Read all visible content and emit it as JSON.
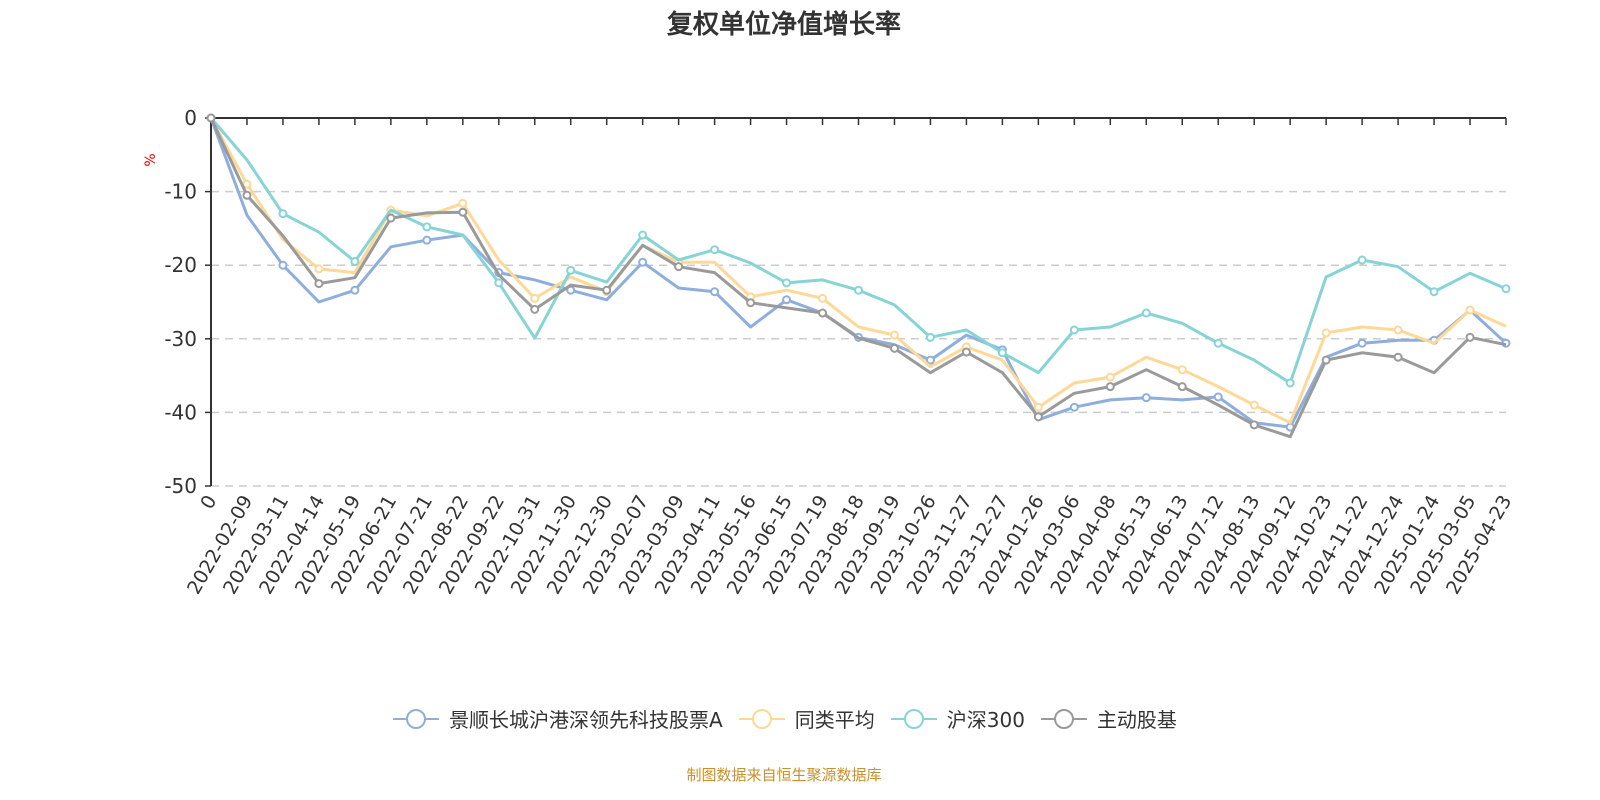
{
  "chart_data": {
    "type": "line",
    "title": "复权单位净值增长率",
    "ylabel": "%",
    "xlabel": "",
    "ylim": [
      -50,
      0
    ],
    "yticks": [
      0,
      -10,
      -20,
      -30,
      -40,
      -50
    ],
    "grid": true,
    "legend_position": "bottom",
    "categories": [
      "0",
      "2022-02-09",
      "2022-03-11",
      "2022-04-14",
      "2022-05-19",
      "2022-06-21",
      "2022-07-21",
      "2022-08-22",
      "2022-09-22",
      "2022-10-31",
      "2022-11-30",
      "2022-12-30",
      "2023-02-07",
      "2023-03-09",
      "2023-04-11",
      "2023-05-16",
      "2023-06-15",
      "2023-07-19",
      "2023-08-18",
      "2023-09-19",
      "2023-10-26",
      "2023-11-27",
      "2023-12-27",
      "2024-01-26",
      "2024-03-06",
      "2024-04-08",
      "2024-05-13",
      "2024-06-13",
      "2024-07-12",
      "2024-08-13",
      "2024-09-12",
      "2024-10-23",
      "2024-11-22",
      "2024-12-24",
      "2025-01-24",
      "2025-03-05",
      "2025-04-23"
    ],
    "series": [
      {
        "name": "景顺长城沪港深领先科技股票A",
        "color": "#8eaedd",
        "values": [
          0,
          -13.2,
          -20,
          -25,
          -23.4,
          -17.5,
          -16.6,
          -15.9,
          -21,
          -22,
          -23.4,
          -24.7,
          -19.6,
          -23.1,
          -23.6,
          -28.4,
          -24.7,
          -26.5,
          -29.8,
          -30.8,
          -32.9,
          -29.5,
          -31.5,
          -41,
          -39.3,
          -38.3,
          -38,
          -38.3,
          -37.9,
          -41.4,
          -42,
          -32.5,
          -30.6,
          -30.2,
          -30.2,
          -26.1,
          -30.6
        ]
      },
      {
        "name": "同类平均",
        "color": "#fdd897",
        "values": [
          0,
          -9,
          -16.5,
          -20.5,
          -21,
          -12.5,
          -13.3,
          -11.6,
          -19.3,
          -24.5,
          -21.6,
          -23.6,
          -17.3,
          -19.6,
          -19.6,
          -24.3,
          -23.4,
          -24.5,
          -28.4,
          -29.5,
          -33.8,
          -31.1,
          -32.9,
          -39.3,
          -36,
          -35.2,
          -32.5,
          -34.2,
          -36.5,
          -39,
          -41.4,
          -29.2,
          -28.4,
          -28.8,
          -30.6,
          -26.1,
          -28.3
        ]
      },
      {
        "name": "沪深300",
        "color": "#86d4d5",
        "values": [
          0,
          -5.7,
          -13,
          -15.5,
          -19.5,
          -12.5,
          -14.8,
          -15.9,
          -22.4,
          -29.9,
          -20.7,
          -22.3,
          -15.9,
          -19.3,
          -17.9,
          -19.7,
          -22.4,
          -22,
          -23.4,
          -25.4,
          -29.8,
          -28.8,
          -31.9,
          -34.6,
          -28.8,
          -28.4,
          -26.5,
          -27.9,
          -30.6,
          -32.9,
          -36,
          -21.6,
          -19.3,
          -20.2,
          -23.6,
          -21.1,
          -23.2
        ]
      },
      {
        "name": "主动股基",
        "color": "#9a9a9a",
        "values": [
          0,
          -10.5,
          -16,
          -22.5,
          -21.7,
          -13.6,
          -12.9,
          -12.8,
          -21.3,
          -26,
          -22.7,
          -23.4,
          -17.3,
          -20.2,
          -21,
          -25.1,
          -25.8,
          -26.5,
          -29.9,
          -31.3,
          -34.6,
          -31.8,
          -34.6,
          -40.6,
          -37.4,
          -36.5,
          -34.2,
          -36.5,
          -39,
          -41.7,
          -43.3,
          -32.9,
          -31.9,
          -32.5,
          -34.6,
          -29.8,
          -30.8
        ]
      }
    ]
  },
  "footer": "制图数据来自恒生聚源数据库"
}
